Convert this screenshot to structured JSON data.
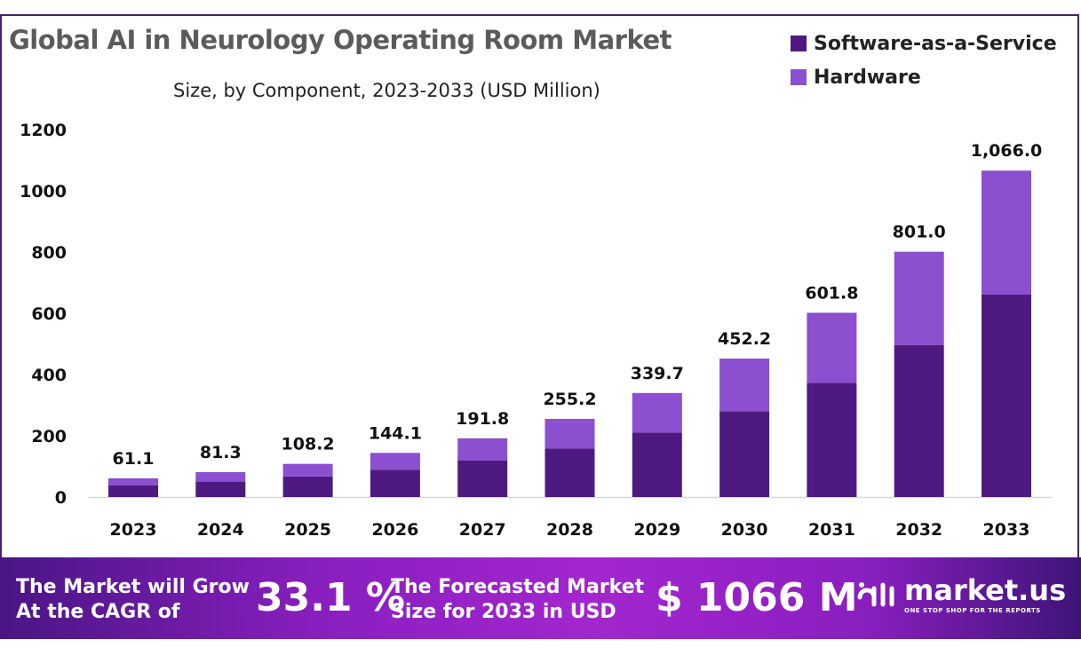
{
  "chart_data": {
    "type": "bar",
    "stacked": true,
    "title": "Global AI in Neurology Operating Room Market",
    "subtitle": "Size, by Component, 2023-2033 (USD Million)",
    "categories": [
      "2023",
      "2024",
      "2025",
      "2026",
      "2027",
      "2028",
      "2029",
      "2030",
      "2031",
      "2032",
      "2033"
    ],
    "series": [
      {
        "name": "Software-as-a-Service",
        "color": "#4e1a82",
        "values": [
          37.9,
          50.4,
          67.1,
          89.3,
          118.9,
          158.2,
          210.6,
          280.4,
          373.1,
          496.6,
          660.9
        ]
      },
      {
        "name": "Hardware",
        "color": "#8b4fcf",
        "values": [
          23.2,
          30.9,
          41.1,
          54.8,
          72.9,
          97.0,
          129.1,
          171.8,
          228.7,
          304.4,
          405.1
        ]
      }
    ],
    "totals": [
      61.1,
      81.3,
      108.2,
      144.1,
      191.8,
      255.2,
      339.7,
      452.2,
      601.8,
      801.0,
      1066.0
    ],
    "total_labels": [
      "61.1",
      "81.3",
      "108.2",
      "144.1",
      "191.8",
      "255.2",
      "339.7",
      "452.2",
      "601.8",
      "801.0",
      "1,066.0"
    ],
    "yticks": [
      0,
      200,
      400,
      600,
      800,
      1000,
      1200
    ],
    "ylim": [
      0,
      1200
    ],
    "grid": false,
    "legend": "top-right"
  },
  "footer": {
    "cagr_text_1": "The Market will Grow",
    "cagr_text_2": "At the CAGR of",
    "cagr_value": "33.1 %",
    "forecast_text_1": "The Forecasted Market",
    "forecast_text_2": "Size for 2033 in USD",
    "forecast_value": "$ 1066 M",
    "logo_name": "market.us",
    "logo_tagline": "ONE STOP SHOP FOR THE REPORTS"
  }
}
